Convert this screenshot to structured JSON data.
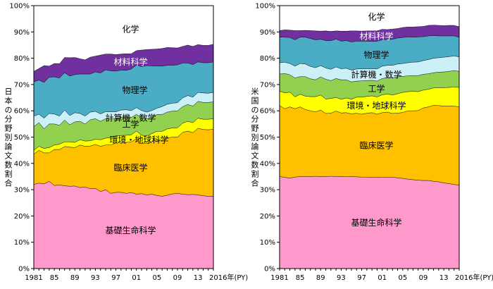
{
  "chart_data": [
    {
      "type": "area",
      "stacked": true,
      "ylabel": "日本の分野別論文数割合",
      "xlabel": "2016年(PY)",
      "ylim": [
        0,
        100
      ],
      "yticks": [
        "0%",
        "10%",
        "20%",
        "30%",
        "40%",
        "50%",
        "60%",
        "70%",
        "80%",
        "90%",
        "100%"
      ],
      "xticks": [
        "1981",
        "85",
        "89",
        "93",
        "97",
        "01",
        "05",
        "09",
        "13",
        "2016年(PY)"
      ],
      "x": [
        1981,
        1982,
        1983,
        1984,
        1985,
        1986,
        1987,
        1988,
        1989,
        1990,
        1991,
        1992,
        1993,
        1994,
        1995,
        1996,
        1997,
        1998,
        1999,
        2000,
        2001,
        2002,
        2003,
        2004,
        2005,
        2006,
        2007,
        2008,
        2009,
        2010,
        2011,
        2012,
        2013,
        2014,
        2015,
        2016
      ],
      "series": [
        {
          "name": "基礎生命科学",
          "color": "#FF99CC",
          "values": [
            32.0,
            32.5,
            32.2,
            33.2,
            31.6,
            31.8,
            31.5,
            31.3,
            31.4,
            30.8,
            31.0,
            30.4,
            30.5,
            29.3,
            30.0,
            28.6,
            29.0,
            29.0,
            28.6,
            28.9,
            28.3,
            28.5,
            28.0,
            28.3,
            27.8,
            27.5,
            27.9,
            28.4,
            28.6,
            28.3,
            28.1,
            28.2,
            28.0,
            27.7,
            27.5,
            27.5
          ]
        },
        {
          "name": "臨床医学",
          "color": "#FFC000",
          "values": [
            11.5,
            12.5,
            11.8,
            10.8,
            13.7,
            13.5,
            14.9,
            14.9,
            14.6,
            16.2,
            15.5,
            16.2,
            16.7,
            17.2,
            17.0,
            18.4,
            18.8,
            18.8,
            19.4,
            19.3,
            21.1,
            19.2,
            19.5,
            20.0,
            21.2,
            21.3,
            21.8,
            21.6,
            21.4,
            23.5,
            24.2,
            23.5,
            25.4,
            25.2,
            25.3,
            25.5
          ]
        },
        {
          "name": "環境・地球科学",
          "color": "#FFFF00",
          "values": [
            1.5,
            1.5,
            1.7,
            2.0,
            1.7,
            2.0,
            1.8,
            2.0,
            2.0,
            2.0,
            2.0,
            2.0,
            2.0,
            2.5,
            2.6,
            2.8,
            2.7,
            2.8,
            2.7,
            2.7,
            2.9,
            3.0,
            3.0,
            3.0,
            3.2,
            3.4,
            3.4,
            3.5,
            3.5,
            3.5,
            3.7,
            3.8,
            3.8,
            3.9,
            4.0,
            4.0
          ]
        },
        {
          "name": "工学",
          "color": "#92D050",
          "values": [
            9.0,
            9.0,
            7.5,
            9.0,
            8.0,
            7.2,
            8.3,
            6.5,
            7.8,
            7.0,
            6.5,
            8.0,
            7.8,
            7.0,
            7.4,
            7.2,
            6.5,
            7.0,
            7.0,
            6.6,
            6.3,
            6.8,
            6.5,
            6.3,
            6.4,
            6.4,
            6.4,
            6.4,
            6.5,
            6.3,
            6.4,
            6.3,
            6.4,
            6.4,
            6.4,
            6.4
          ]
        },
        {
          "name": "計算機・数学",
          "color": "#CCF0F8",
          "values": [
            4.0,
            3.2,
            4.0,
            4.0,
            3.8,
            3.5,
            3.8,
            3.5,
            3.5,
            3.0,
            3.0,
            2.9,
            2.8,
            2.8,
            2.7,
            2.6,
            2.6,
            2.7,
            2.7,
            2.6,
            2.6,
            2.6,
            2.5,
            2.5,
            2.4,
            3.0,
            3.0,
            3.0,
            3.1,
            3.3,
            3.4,
            3.4,
            3.4,
            3.6,
            3.5,
            3.6
          ]
        },
        {
          "name": "物理学",
          "color": "#4BACC6",
          "values": [
            13.0,
            13.0,
            13.6,
            13.8,
            14.1,
            14.5,
            14.2,
            15.0,
            14.5,
            15.0,
            16.0,
            14.5,
            15.0,
            15.6,
            15.9,
            15.6,
            15.5,
            15.2,
            15.0,
            15.8,
            16.2,
            16.7,
            17.7,
            17.0,
            16.0,
            15.4,
            14.8,
            14.4,
            14.4,
            13.3,
            12.4,
            12.4,
            11.6,
            11.5,
            11.6,
            11.6
          ]
        },
        {
          "name": "材料科学",
          "color": "#7030A0",
          "values": [
            4.0,
            4.4,
            6.4,
            4.2,
            5.1,
            5.4,
            5.8,
            7.0,
            6.5,
            5.8,
            5.4,
            6.4,
            6.0,
            6.8,
            6.0,
            6.4,
            6.3,
            6.1,
            6.3,
            5.8,
            5.5,
            6.3,
            6.1,
            6.3,
            6.5,
            6.7,
            6.8,
            6.7,
            6.4,
            6.3,
            6.8,
            6.9,
            6.6,
            6.6,
            6.6,
            6.7
          ]
        },
        {
          "name": "化学",
          "color": "#FFFFFF",
          "values": [
            25.0,
            23.9,
            22.8,
            23.0,
            22.0,
            22.1,
            19.7,
            19.8,
            19.7,
            20.2,
            20.6,
            19.6,
            19.2,
            18.8,
            18.4,
            18.4,
            18.6,
            18.4,
            18.3,
            18.3,
            17.1,
            16.9,
            16.7,
            16.6,
            16.5,
            16.3,
            15.9,
            16.0,
            16.1,
            15.5,
            15.0,
            15.5,
            14.8,
            15.1,
            15.1,
            14.7
          ]
        }
      ]
    },
    {
      "type": "area",
      "stacked": true,
      "ylabel": "米国の分野別論文数割合",
      "xlabel": "2016年(PY)",
      "ylim": [
        0,
        100
      ],
      "yticks": [
        "0%",
        "10%",
        "20%",
        "30%",
        "40%",
        "50%",
        "60%",
        "70%",
        "80%",
        "90%",
        "100%"
      ],
      "xticks": [
        "1981",
        "85",
        "89",
        "93",
        "97",
        "01",
        "05",
        "09",
        "13",
        "2016年(PY)"
      ],
      "x": [
        1981,
        1982,
        1983,
        1984,
        1985,
        1986,
        1987,
        1988,
        1989,
        1990,
        1991,
        1992,
        1993,
        1994,
        1995,
        1996,
        1997,
        1998,
        1999,
        2000,
        2001,
        2002,
        2003,
        2004,
        2005,
        2006,
        2007,
        2008,
        2009,
        2010,
        2011,
        2012,
        2013,
        2014,
        2015,
        2016
      ],
      "series": [
        {
          "name": "基礎生命科学",
          "color": "#FF99CC",
          "values": [
            35.0,
            34.7,
            34.4,
            34.8,
            35.0,
            35.0,
            35.0,
            35.1,
            35.0,
            35.0,
            35.1,
            35.0,
            35.0,
            34.9,
            35.0,
            34.9,
            34.8,
            34.8,
            34.7,
            34.7,
            34.8,
            34.7,
            34.8,
            34.5,
            34.3,
            34.0,
            33.8,
            33.6,
            33.5,
            33.5,
            33.2,
            33.0,
            32.6,
            32.3,
            32.0,
            31.7
          ]
        },
        {
          "name": "臨床医学",
          "color": "#FFC000",
          "values": [
            27.0,
            26.1,
            27.1,
            26.0,
            26.5,
            25.5,
            25.0,
            24.5,
            25.3,
            24.0,
            24.0,
            24.9,
            24.2,
            24.4,
            23.8,
            24.2,
            23.9,
            24.3,
            24.6,
            24.0,
            24.5,
            24.8,
            24.2,
            24.6,
            25.1,
            26.0,
            26.2,
            26.5,
            27.6,
            28.0,
            28.9,
            29.0,
            29.2,
            29.5,
            29.8,
            29.8
          ]
        },
        {
          "name": "環境・地球科学",
          "color": "#FFFF00",
          "values": [
            5.5,
            6.0,
            5.6,
            4.5,
            4.8,
            5.1,
            5.4,
            5.8,
            5.7,
            5.5,
            5.6,
            5.2,
            5.2,
            5.6,
            5.6,
            6.1,
            6.5,
            6.4,
            6.4,
            6.6,
            6.8,
            6.9,
            7.0,
            7.4,
            7.6,
            7.3,
            7.4,
            7.2,
            6.8,
            6.7,
            6.6,
            6.8,
            7.0,
            7.1,
            7.3,
            7.4
          ]
        },
        {
          "name": "工学",
          "color": "#92D050",
          "values": [
            6.5,
            7.4,
            6.6,
            7.2,
            6.7,
            7.4,
            6.8,
            6.4,
            6.9,
            7.5,
            6.8,
            7.2,
            7.4,
            6.9,
            6.6,
            6.1,
            6.2,
            6.0,
            5.9,
            6.0,
            6.2,
            6.2,
            6.5,
            6.5,
            6.1,
            6.0,
            6.0,
            6.1,
            6.0,
            5.9,
            5.8,
            5.9,
            6.0,
            6.1,
            6.2,
            6.1
          ]
        },
        {
          "name": "計算機・数学",
          "color": "#CCF0F8",
          "values": [
            4.3,
            4.3,
            4.3,
            4.5,
            5.0,
            4.8,
            4.7,
            4.6,
            4.3,
            4.3,
            4.3,
            4.4,
            4.2,
            4.4,
            4.5,
            4.6,
            4.6,
            4.5,
            4.4,
            4.6,
            4.7,
            4.7,
            4.8,
            4.8,
            4.9,
            5.0,
            5.1,
            5.2,
            5.2,
            5.4,
            5.5,
            5.5,
            5.6,
            5.6,
            5.6,
            5.5
          ]
        },
        {
          "name": "物理学",
          "color": "#4BACC6",
          "values": [
            9.7,
            9.5,
            9.9,
            10.0,
            10.0,
            10.2,
            10.6,
            10.6,
            10.0,
            10.4,
            10.9,
            10.6,
            10.5,
            10.5,
            10.7,
            10.6,
            10.5,
            10.5,
            10.4,
            10.6,
            10.0,
            9.8,
            9.9,
            9.9,
            9.9,
            9.8,
            9.5,
            9.5,
            9.1,
            9.0,
            8.6,
            8.3,
            8.1,
            7.9,
            7.6,
            7.5
          ]
        },
        {
          "name": "材料科学",
          "color": "#7030A0",
          "values": [
            2.5,
            2.8,
            2.8,
            3.5,
            2.5,
            2.6,
            3.0,
            3.4,
            3.1,
            3.7,
            3.5,
            3.1,
            3.8,
            3.6,
            4.2,
            3.9,
            3.8,
            3.9,
            4.0,
            3.9,
            4.0,
            3.8,
            3.9,
            3.6,
            3.8,
            3.8,
            3.9,
            3.9,
            3.9,
            4.0,
            4.0,
            4.0,
            3.9,
            4.0,
            4.0,
            4.0
          ]
        },
        {
          "name": "化学",
          "color": "#FFFFFF",
          "values": [
            9.5,
            9.2,
            9.3,
            9.5,
            9.5,
            9.4,
            9.5,
            9.6,
            9.7,
            9.6,
            9.8,
            9.6,
            9.7,
            9.7,
            9.6,
            9.6,
            9.7,
            9.6,
            9.6,
            9.6,
            9.0,
            9.1,
            8.9,
            8.7,
            8.3,
            8.1,
            8.1,
            8.0,
            7.9,
            7.5,
            7.4,
            7.5,
            7.6,
            7.5,
            7.5,
            8.0
          ]
        }
      ]
    }
  ]
}
